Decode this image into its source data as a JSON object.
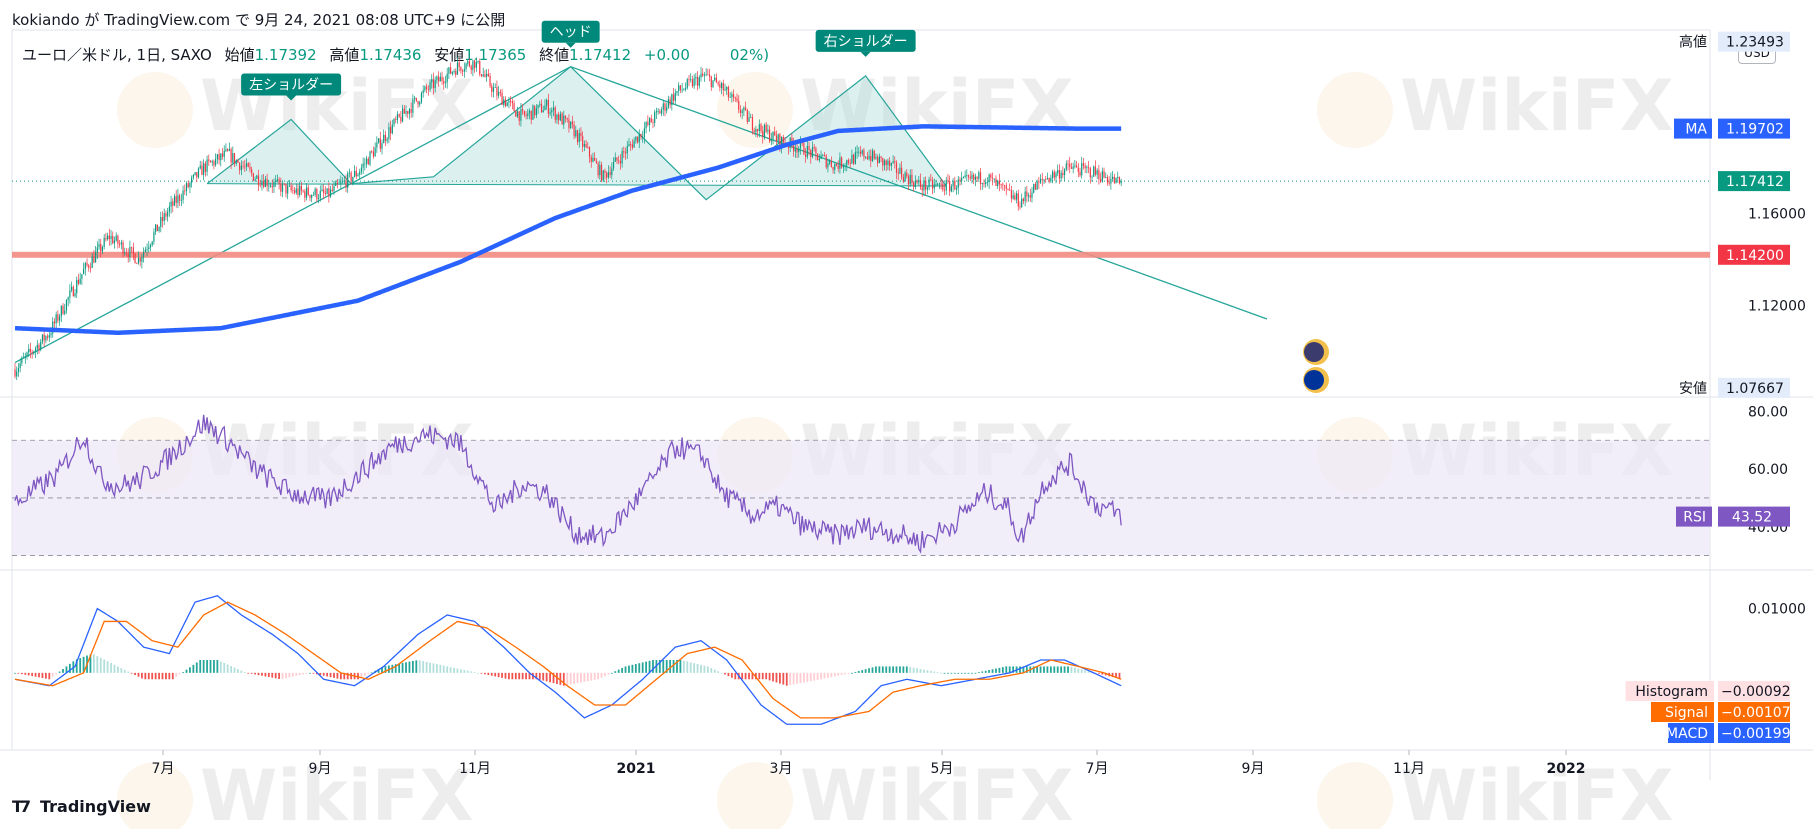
{
  "header": {
    "byline": "kokiando が TradingView.com で 9月 24, 2021 08:08 UTC+9 に公開"
  },
  "legend": {
    "symbol": "ユーロ／米ドル, 1日, SAXO",
    "open_label": "始値",
    "open": "1.17392",
    "high_label": "高値",
    "high": "1.17436",
    "low_label": "安値",
    "low": "1.17365",
    "close_label": "終値",
    "close": "1.17412",
    "change": "+0.00",
    "change_pct": "02%)"
  },
  "currency": "USD",
  "footer": {
    "brand": "TradingView"
  },
  "watermark": "WikiFX",
  "colors": {
    "up": "#089981",
    "down": "#f23645",
    "ma": "#2962ff",
    "support": "#f28b82",
    "pattern_fill": "#b2dfdb",
    "pattern_line": "#26a69a",
    "rsi": "#7e57c2",
    "rsi_band": "#ede7f6",
    "macd": "#2962ff",
    "signal": "#ff6d00",
    "grid": "#e6e6e6",
    "text": "#131722"
  },
  "chart_data": [
    {
      "type": "candlestick",
      "title": "ユーロ／米ドル, 1日, SAXO",
      "x_ticks": [
        "7月",
        "9月",
        "11月",
        "2021",
        "3月",
        "5月",
        "7月",
        "9月",
        "11月",
        "2022"
      ],
      "y_ticks": [
        "1.16000",
        "1.12000"
      ],
      "ylim": [
        1.08,
        1.24
      ],
      "close_path": [
        [
          0,
          1.092
        ],
        [
          20,
          1.108
        ],
        [
          40,
          1.135
        ],
        [
          55,
          1.15
        ],
        [
          72,
          1.14
        ],
        [
          90,
          1.162
        ],
        [
          110,
          1.18
        ],
        [
          124,
          1.186
        ],
        [
          140,
          1.176
        ],
        [
          160,
          1.17
        ],
        [
          182,
          1.168
        ],
        [
          200,
          1.178
        ],
        [
          220,
          1.198
        ],
        [
          240,
          1.214
        ],
        [
          258,
          1.224
        ],
        [
          268,
          1.226
        ],
        [
          280,
          1.213
        ],
        [
          296,
          1.202
        ],
        [
          310,
          1.207
        ],
        [
          326,
          1.196
        ],
        [
          343,
          1.176
        ],
        [
          366,
          1.196
        ],
        [
          386,
          1.213
        ],
        [
          402,
          1.22
        ],
        [
          412,
          1.215
        ],
        [
          430,
          1.199
        ],
        [
          445,
          1.192
        ],
        [
          460,
          1.188
        ],
        [
          478,
          1.181
        ],
        [
          496,
          1.186
        ],
        [
          512,
          1.18
        ],
        [
          528,
          1.172
        ],
        [
          545,
          1.172
        ],
        [
          566,
          1.176
        ],
        [
          580,
          1.168
        ],
        [
          586,
          1.165
        ],
        [
          600,
          1.175
        ],
        [
          615,
          1.18
        ],
        [
          629,
          1.178
        ],
        [
          645,
          1.173
        ]
      ],
      "price_labels": [
        {
          "name": "高値",
          "value": "1.23493"
        },
        {
          "name": "MA",
          "value": "1.19702"
        },
        {
          "name": "",
          "value": "1.17412"
        },
        {
          "name": "",
          "value": "1.14200"
        },
        {
          "name": "安値",
          "value": "1.07667"
        }
      ],
      "moving_average": [
        [
          0,
          1.11
        ],
        [
          60,
          1.108
        ],
        [
          120,
          1.11
        ],
        [
          200,
          1.122
        ],
        [
          260,
          1.139
        ],
        [
          315,
          1.158
        ],
        [
          360,
          1.17
        ],
        [
          410,
          1.18
        ],
        [
          450,
          1.19
        ],
        [
          480,
          1.196
        ],
        [
          530,
          1.198
        ],
        [
          620,
          1.197
        ],
        [
          645,
          1.197
        ]
      ],
      "horizontal_line": 1.142,
      "pattern": {
        "labels": [
          "左ショルダー",
          "ヘッド",
          "右ショルダー"
        ],
        "points": [
          [
            112,
            1.173
          ],
          [
            161,
            1.201
          ],
          [
            196,
            1.173
          ],
          [
            244,
            1.176
          ],
          [
            324,
            1.224
          ],
          [
            403,
            1.166
          ],
          [
            496,
            1.22
          ],
          [
            543,
            1.172
          ]
        ],
        "neckline": [
          [
            112,
            1.173
          ],
          [
            543,
            1.172
          ]
        ],
        "trendline": [
          [
            0,
            1.095
          ],
          [
            324,
            1.224
          ],
          [
            730,
            1.114
          ]
        ]
      }
    },
    {
      "type": "line",
      "title": "RSI",
      "y_ticks": [
        "80.00",
        "60.00",
        "40.00"
      ],
      "ylim": [
        25,
        85
      ],
      "bands": [
        30,
        50,
        70
      ],
      "series": [
        {
          "name": "RSI",
          "values": [
            [
              0,
              48
            ],
            [
              25,
              58
            ],
            [
              40,
              72
            ],
            [
              50,
              57
            ],
            [
              60,
              54
            ],
            [
              72,
              56
            ],
            [
              90,
              64
            ],
            [
              110,
              76
            ],
            [
              124,
              70
            ],
            [
              140,
              60
            ],
            [
              160,
              52
            ],
            [
              182,
              49
            ],
            [
              200,
              58
            ],
            [
              220,
              68
            ],
            [
              240,
              72
            ],
            [
              258,
              70
            ],
            [
              268,
              60
            ],
            [
              280,
              46
            ],
            [
              296,
              55
            ],
            [
              310,
              52
            ],
            [
              326,
              38
            ],
            [
              343,
              36
            ],
            [
              366,
              52
            ],
            [
              386,
              68
            ],
            [
              402,
              64
            ],
            [
              412,
              52
            ],
            [
              430,
              44
            ],
            [
              445,
              47
            ],
            [
              460,
              40
            ],
            [
              478,
              37
            ],
            [
              496,
              40
            ],
            [
              512,
              38
            ],
            [
              528,
              35
            ],
            [
              545,
              40
            ],
            [
              566,
              52
            ],
            [
              580,
              46
            ],
            [
              586,
              35
            ],
            [
              600,
              55
            ],
            [
              615,
              62
            ],
            [
              629,
              48
            ],
            [
              645,
              44
            ]
          ]
        }
      ],
      "last_value": "43.52"
    },
    {
      "type": "macd",
      "y_ticks": [
        "0.01000"
      ],
      "ylim": [
        -0.012,
        0.016
      ],
      "series": [
        {
          "name": "MACD",
          "values": [
            [
              0,
              -0.001
            ],
            [
              20,
              -0.002
            ],
            [
              35,
              0.001
            ],
            [
              48,
              0.01
            ],
            [
              60,
              0.008
            ],
            [
              75,
              0.004
            ],
            [
              90,
              0.003
            ],
            [
              105,
              0.011
            ],
            [
              118,
              0.012
            ],
            [
              132,
              0.009
            ],
            [
              150,
              0.006
            ],
            [
              165,
              0.003
            ],
            [
              180,
              -0.001
            ],
            [
              198,
              -0.002
            ],
            [
              215,
              0.001
            ],
            [
              235,
              0.006
            ],
            [
              252,
              0.009
            ],
            [
              268,
              0.008
            ],
            [
              285,
              0.004
            ],
            [
              300,
              0.0
            ],
            [
              315,
              -0.003
            ],
            [
              332,
              -0.007
            ],
            [
              348,
              -0.005
            ],
            [
              366,
              -0.001
            ],
            [
              385,
              0.004
            ],
            [
              400,
              0.005
            ],
            [
              415,
              0.002
            ],
            [
              435,
              -0.005
            ],
            [
              450,
              -0.008
            ],
            [
              470,
              -0.008
            ],
            [
              490,
              -0.006
            ],
            [
              505,
              -0.002
            ],
            [
              520,
              -0.001
            ],
            [
              540,
              -0.002
            ],
            [
              560,
              -0.001
            ],
            [
              580,
              0.0
            ],
            [
              598,
              0.002
            ],
            [
              612,
              0.002
            ],
            [
              629,
              0.0
            ],
            [
              645,
              -0.002
            ]
          ]
        },
        {
          "name": "Signal",
          "values": [
            [
              0,
              -0.001
            ],
            [
              22,
              -0.002
            ],
            [
              40,
              0.0
            ],
            [
              52,
              0.008
            ],
            [
              65,
              0.008
            ],
            [
              80,
              0.005
            ],
            [
              95,
              0.004
            ],
            [
              110,
              0.009
            ],
            [
              124,
              0.011
            ],
            [
              140,
              0.009
            ],
            [
              158,
              0.006
            ],
            [
              174,
              0.003
            ],
            [
              190,
              0.0
            ],
            [
              206,
              -0.001
            ],
            [
              222,
              0.001
            ],
            [
              242,
              0.005
            ],
            [
              258,
              0.008
            ],
            [
              275,
              0.007
            ],
            [
              292,
              0.004
            ],
            [
              308,
              0.001
            ],
            [
              322,
              -0.002
            ],
            [
              338,
              -0.005
            ],
            [
              356,
              -0.005
            ],
            [
              374,
              -0.001
            ],
            [
              392,
              0.003
            ],
            [
              408,
              0.004
            ],
            [
              424,
              0.002
            ],
            [
              442,
              -0.004
            ],
            [
              458,
              -0.007
            ],
            [
              478,
              -0.007
            ],
            [
              498,
              -0.006
            ],
            [
              512,
              -0.003
            ],
            [
              528,
              -0.002
            ],
            [
              548,
              -0.001
            ],
            [
              568,
              -0.001
            ],
            [
              588,
              0.0
            ],
            [
              604,
              0.002
            ],
            [
              620,
              0.001
            ],
            [
              635,
              0.0
            ],
            [
              645,
              -0.001
            ]
          ]
        }
      ],
      "histogram_envelope": [
        [
          0,
          0.0
        ],
        [
          20,
          -0.001
        ],
        [
          35,
          0.002
        ],
        [
          45,
          0.003
        ],
        [
          60,
          0.001
        ],
        [
          75,
          -0.001
        ],
        [
          92,
          -0.001
        ],
        [
          108,
          0.002
        ],
        [
          118,
          0.002
        ],
        [
          135,
          0.0
        ],
        [
          155,
          -0.001
        ],
        [
          172,
          0.0
        ],
        [
          190,
          -0.001
        ],
        [
          200,
          -0.001
        ],
        [
          215,
          0.001
        ],
        [
          235,
          0.002
        ],
        [
          252,
          0.001
        ],
        [
          270,
          0.0
        ],
        [
          288,
          -0.001
        ],
        [
          305,
          -0.001
        ],
        [
          320,
          -0.002
        ],
        [
          340,
          -0.001
        ],
        [
          356,
          0.001
        ],
        [
          372,
          0.002
        ],
        [
          388,
          0.002
        ],
        [
          404,
          0.001
        ],
        [
          420,
          -0.001
        ],
        [
          438,
          -0.001
        ],
        [
          450,
          -0.002
        ],
        [
          470,
          -0.001
        ],
        [
          488,
          0.0
        ],
        [
          502,
          0.001
        ],
        [
          520,
          0.001
        ],
        [
          540,
          0.0
        ],
        [
          560,
          0.0
        ],
        [
          578,
          0.001
        ],
        [
          596,
          0.001
        ],
        [
          615,
          0.001
        ],
        [
          630,
          0.0
        ],
        [
          645,
          -0.001
        ]
      ],
      "last_values": [
        {
          "name": "Histogram",
          "value": "−0.00092"
        },
        {
          "name": "Signal",
          "value": "−0.00107"
        },
        {
          "name": "MACD",
          "value": "−0.00199"
        }
      ]
    }
  ]
}
